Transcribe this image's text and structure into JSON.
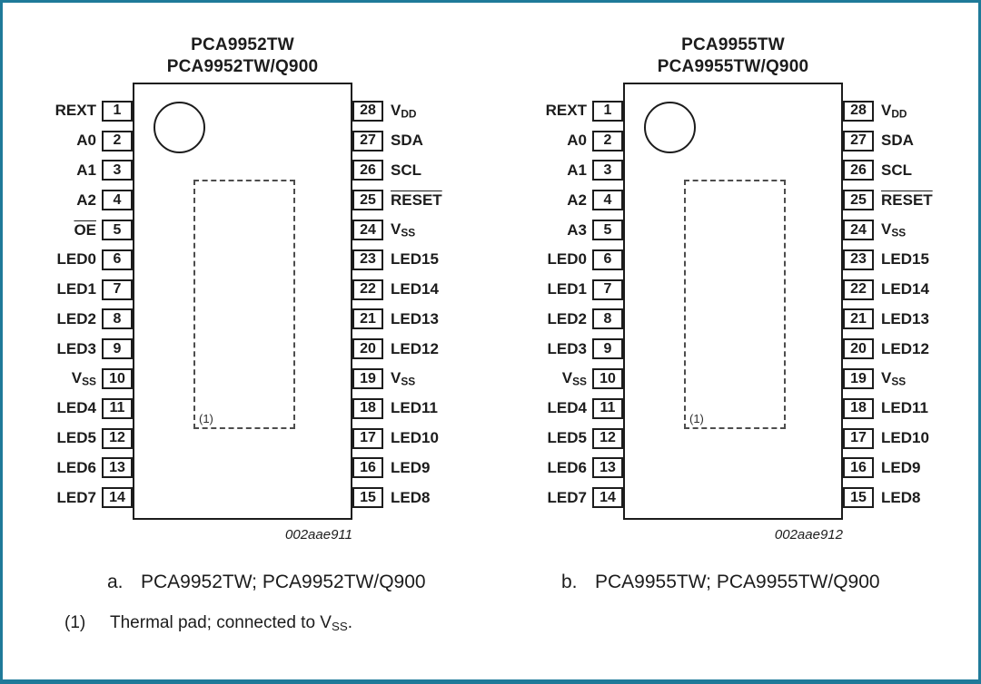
{
  "page": {
    "background": "#ffffff",
    "border_color": "#1f7a99",
    "ink_color": "#1c1c1c"
  },
  "chips": [
    {
      "title_line1": "PCA9952TW",
      "title_line2": "PCA9952TW/Q900",
      "image_code": "002aae911",
      "thermal_pad_ref": "(1)",
      "caption_letter": "a.",
      "caption_text": "PCA9952TW; PCA9952TW/Q900",
      "left_pins": [
        {
          "num": "1",
          "label": "REXT"
        },
        {
          "num": "2",
          "label": "A0"
        },
        {
          "num": "3",
          "label": "A1"
        },
        {
          "num": "4",
          "label": "A2"
        },
        {
          "num": "5",
          "label": "OE",
          "overline": true
        },
        {
          "num": "6",
          "label": "LED0"
        },
        {
          "num": "7",
          "label": "LED1"
        },
        {
          "num": "8",
          "label": "LED2"
        },
        {
          "num": "9",
          "label": "LED3"
        },
        {
          "num": "10",
          "label": "V",
          "sub": "SS"
        },
        {
          "num": "11",
          "label": "LED4"
        },
        {
          "num": "12",
          "label": "LED5"
        },
        {
          "num": "13",
          "label": "LED6"
        },
        {
          "num": "14",
          "label": "LED7"
        }
      ],
      "right_pins": [
        {
          "num": "28",
          "label": "V",
          "sub": "DD"
        },
        {
          "num": "27",
          "label": "SDA"
        },
        {
          "num": "26",
          "label": "SCL"
        },
        {
          "num": "25",
          "label": "RESET",
          "overline": true
        },
        {
          "num": "24",
          "label": "V",
          "sub": "SS"
        },
        {
          "num": "23",
          "label": "LED15"
        },
        {
          "num": "22",
          "label": "LED14"
        },
        {
          "num": "21",
          "label": "LED13"
        },
        {
          "num": "20",
          "label": "LED12"
        },
        {
          "num": "19",
          "label": "V",
          "sub": "SS"
        },
        {
          "num": "18",
          "label": "LED11"
        },
        {
          "num": "17",
          "label": "LED10"
        },
        {
          "num": "16",
          "label": "LED9"
        },
        {
          "num": "15",
          "label": "LED8"
        }
      ]
    },
    {
      "title_line1": "PCA9955TW",
      "title_line2": "PCA9955TW/Q900",
      "image_code": "002aae912",
      "thermal_pad_ref": "(1)",
      "caption_letter": "b.",
      "caption_text": "PCA9955TW; PCA9955TW/Q900",
      "left_pins": [
        {
          "num": "1",
          "label": "REXT"
        },
        {
          "num": "2",
          "label": "A0"
        },
        {
          "num": "3",
          "label": "A1"
        },
        {
          "num": "4",
          "label": "A2"
        },
        {
          "num": "5",
          "label": "A3"
        },
        {
          "num": "6",
          "label": "LED0"
        },
        {
          "num": "7",
          "label": "LED1"
        },
        {
          "num": "8",
          "label": "LED2"
        },
        {
          "num": "9",
          "label": "LED3"
        },
        {
          "num": "10",
          "label": "V",
          "sub": "SS"
        },
        {
          "num": "11",
          "label": "LED4"
        },
        {
          "num": "12",
          "label": "LED5"
        },
        {
          "num": "13",
          "label": "LED6"
        },
        {
          "num": "14",
          "label": "LED7"
        }
      ],
      "right_pins": [
        {
          "num": "28",
          "label": "V",
          "sub": "DD"
        },
        {
          "num": "27",
          "label": "SDA"
        },
        {
          "num": "26",
          "label": "SCL"
        },
        {
          "num": "25",
          "label": "RESET",
          "overline": true
        },
        {
          "num": "24",
          "label": "V",
          "sub": "SS"
        },
        {
          "num": "23",
          "label": "LED15"
        },
        {
          "num": "22",
          "label": "LED14"
        },
        {
          "num": "21",
          "label": "LED13"
        },
        {
          "num": "20",
          "label": "LED12"
        },
        {
          "num": "19",
          "label": "V",
          "sub": "SS"
        },
        {
          "num": "18",
          "label": "LED11"
        },
        {
          "num": "17",
          "label": "LED10"
        },
        {
          "num": "16",
          "label": "LED9"
        },
        {
          "num": "15",
          "label": "LED8"
        }
      ]
    }
  ],
  "footnote": {
    "ref": "(1)",
    "before_sub": "Thermal pad; connected to V",
    "sub": "SS",
    "after_sub": "."
  }
}
